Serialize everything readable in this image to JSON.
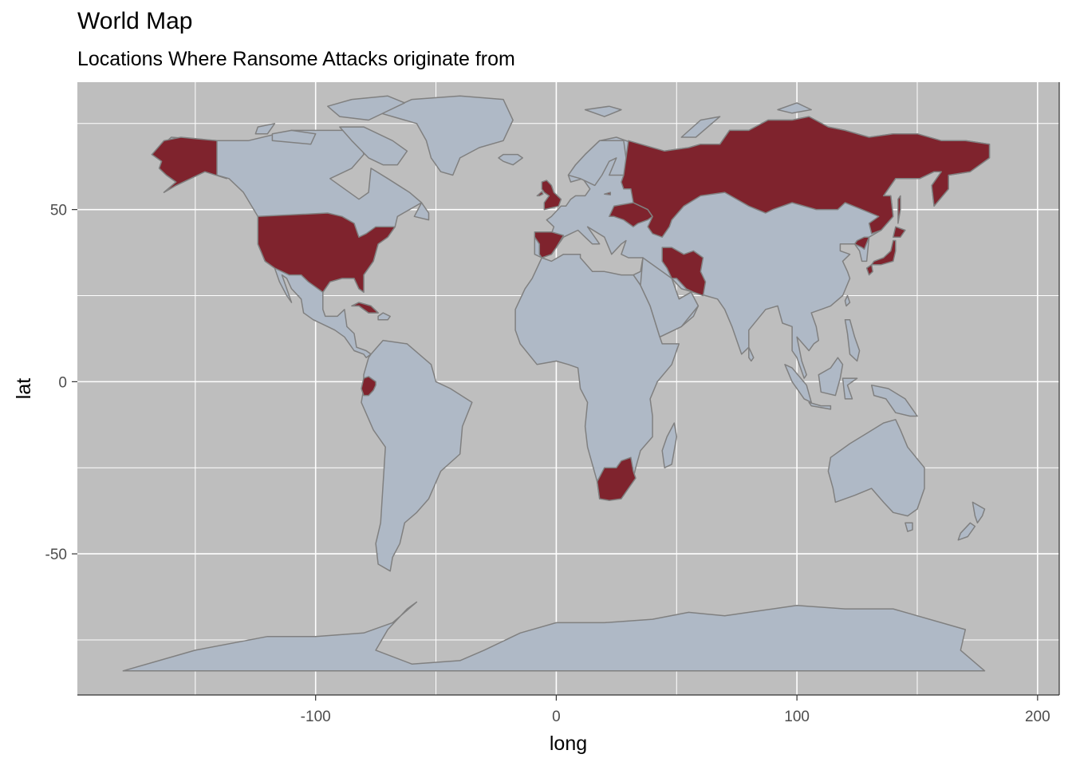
{
  "chart_data": {
    "type": "map",
    "title": "World Map",
    "subtitle": "Locations Where Ransome Attacks originate from",
    "xlabel": "long",
    "ylabel": "lat",
    "xlim": [
      -199,
      209
    ],
    "ylim": [
      -91,
      87
    ],
    "x_ticks": [
      -100,
      0,
      100,
      200
    ],
    "x_tick_labels": [
      "-100",
      "0",
      "100",
      "200"
    ],
    "y_ticks": [
      -50,
      0,
      50
    ],
    "y_tick_labels": [
      "-50",
      "0",
      "50"
    ],
    "grid": true,
    "colors": {
      "panel": "#bebebe",
      "grid": "#ffffff",
      "land": "#afb9c6",
      "highlight": "#7f232d",
      "border": "#808080"
    },
    "highlighted_regions": [
      "Alaska",
      "United States",
      "Cuba",
      "Ecuador",
      "United Kingdom",
      "Spain",
      "Ukraine",
      "Russia",
      "Iran",
      "South Africa",
      "Japan",
      "North Korea"
    ]
  }
}
